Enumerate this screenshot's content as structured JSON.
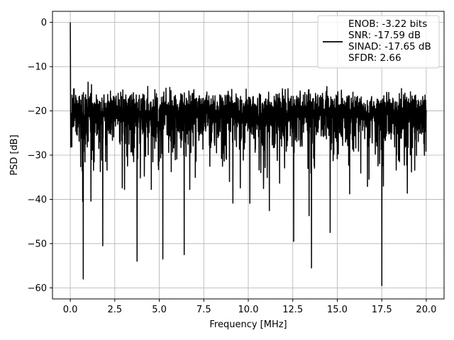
{
  "chart_data": {
    "type": "line",
    "xlabel": "Frequency [MHz]",
    "ylabel": "PSD [dB]",
    "xlim": [
      -1.0,
      21.0
    ],
    "ylim": [
      -62.5,
      2.5
    ],
    "x_ticks": [
      0.0,
      2.5,
      5.0,
      7.5,
      10.0,
      12.5,
      15.0,
      17.5,
      20.0
    ],
    "x_tick_labels": [
      "0.0",
      "2.5",
      "5.0",
      "7.5",
      "10.0",
      "12.5",
      "15.0",
      "17.5",
      "20.0"
    ],
    "y_ticks": [
      0,
      -10,
      -20,
      -30,
      -40,
      -50,
      -60
    ],
    "y_tick_labels": [
      "0",
      "−10",
      "−20",
      "−30",
      "−40",
      "−50",
      "−60"
    ],
    "grid": true,
    "legend_position": "top-right",
    "legend_entries": [
      "ENOB: -3.22 bits",
      "SNR: -17.59 dB",
      "SINAD: -17.65 dB",
      "SFDR: 2.66"
    ],
    "series": [
      {
        "color": "#000000",
        "x_range": [
          0.0,
          20.0
        ],
        "peak": {
          "x": 0.0,
          "y": 0.0
        },
        "noise_floor_median": -22.5,
        "band_top_approx": -14.0,
        "band_bottom_approx": -33.0,
        "noise_spikes_down": [
          {
            "x": 0.73,
            "y": -58.0
          },
          {
            "x": 1.82,
            "y": -50.5
          },
          {
            "x": 3.75,
            "y": -54.0
          },
          {
            "x": 5.2,
            "y": -53.5
          },
          {
            "x": 6.4,
            "y": -52.5
          },
          {
            "x": 12.55,
            "y": -49.5
          },
          {
            "x": 13.55,
            "y": -55.5
          },
          {
            "x": 14.6,
            "y": -47.5
          },
          {
            "x": 17.5,
            "y": -59.5
          }
        ]
      }
    ]
  }
}
